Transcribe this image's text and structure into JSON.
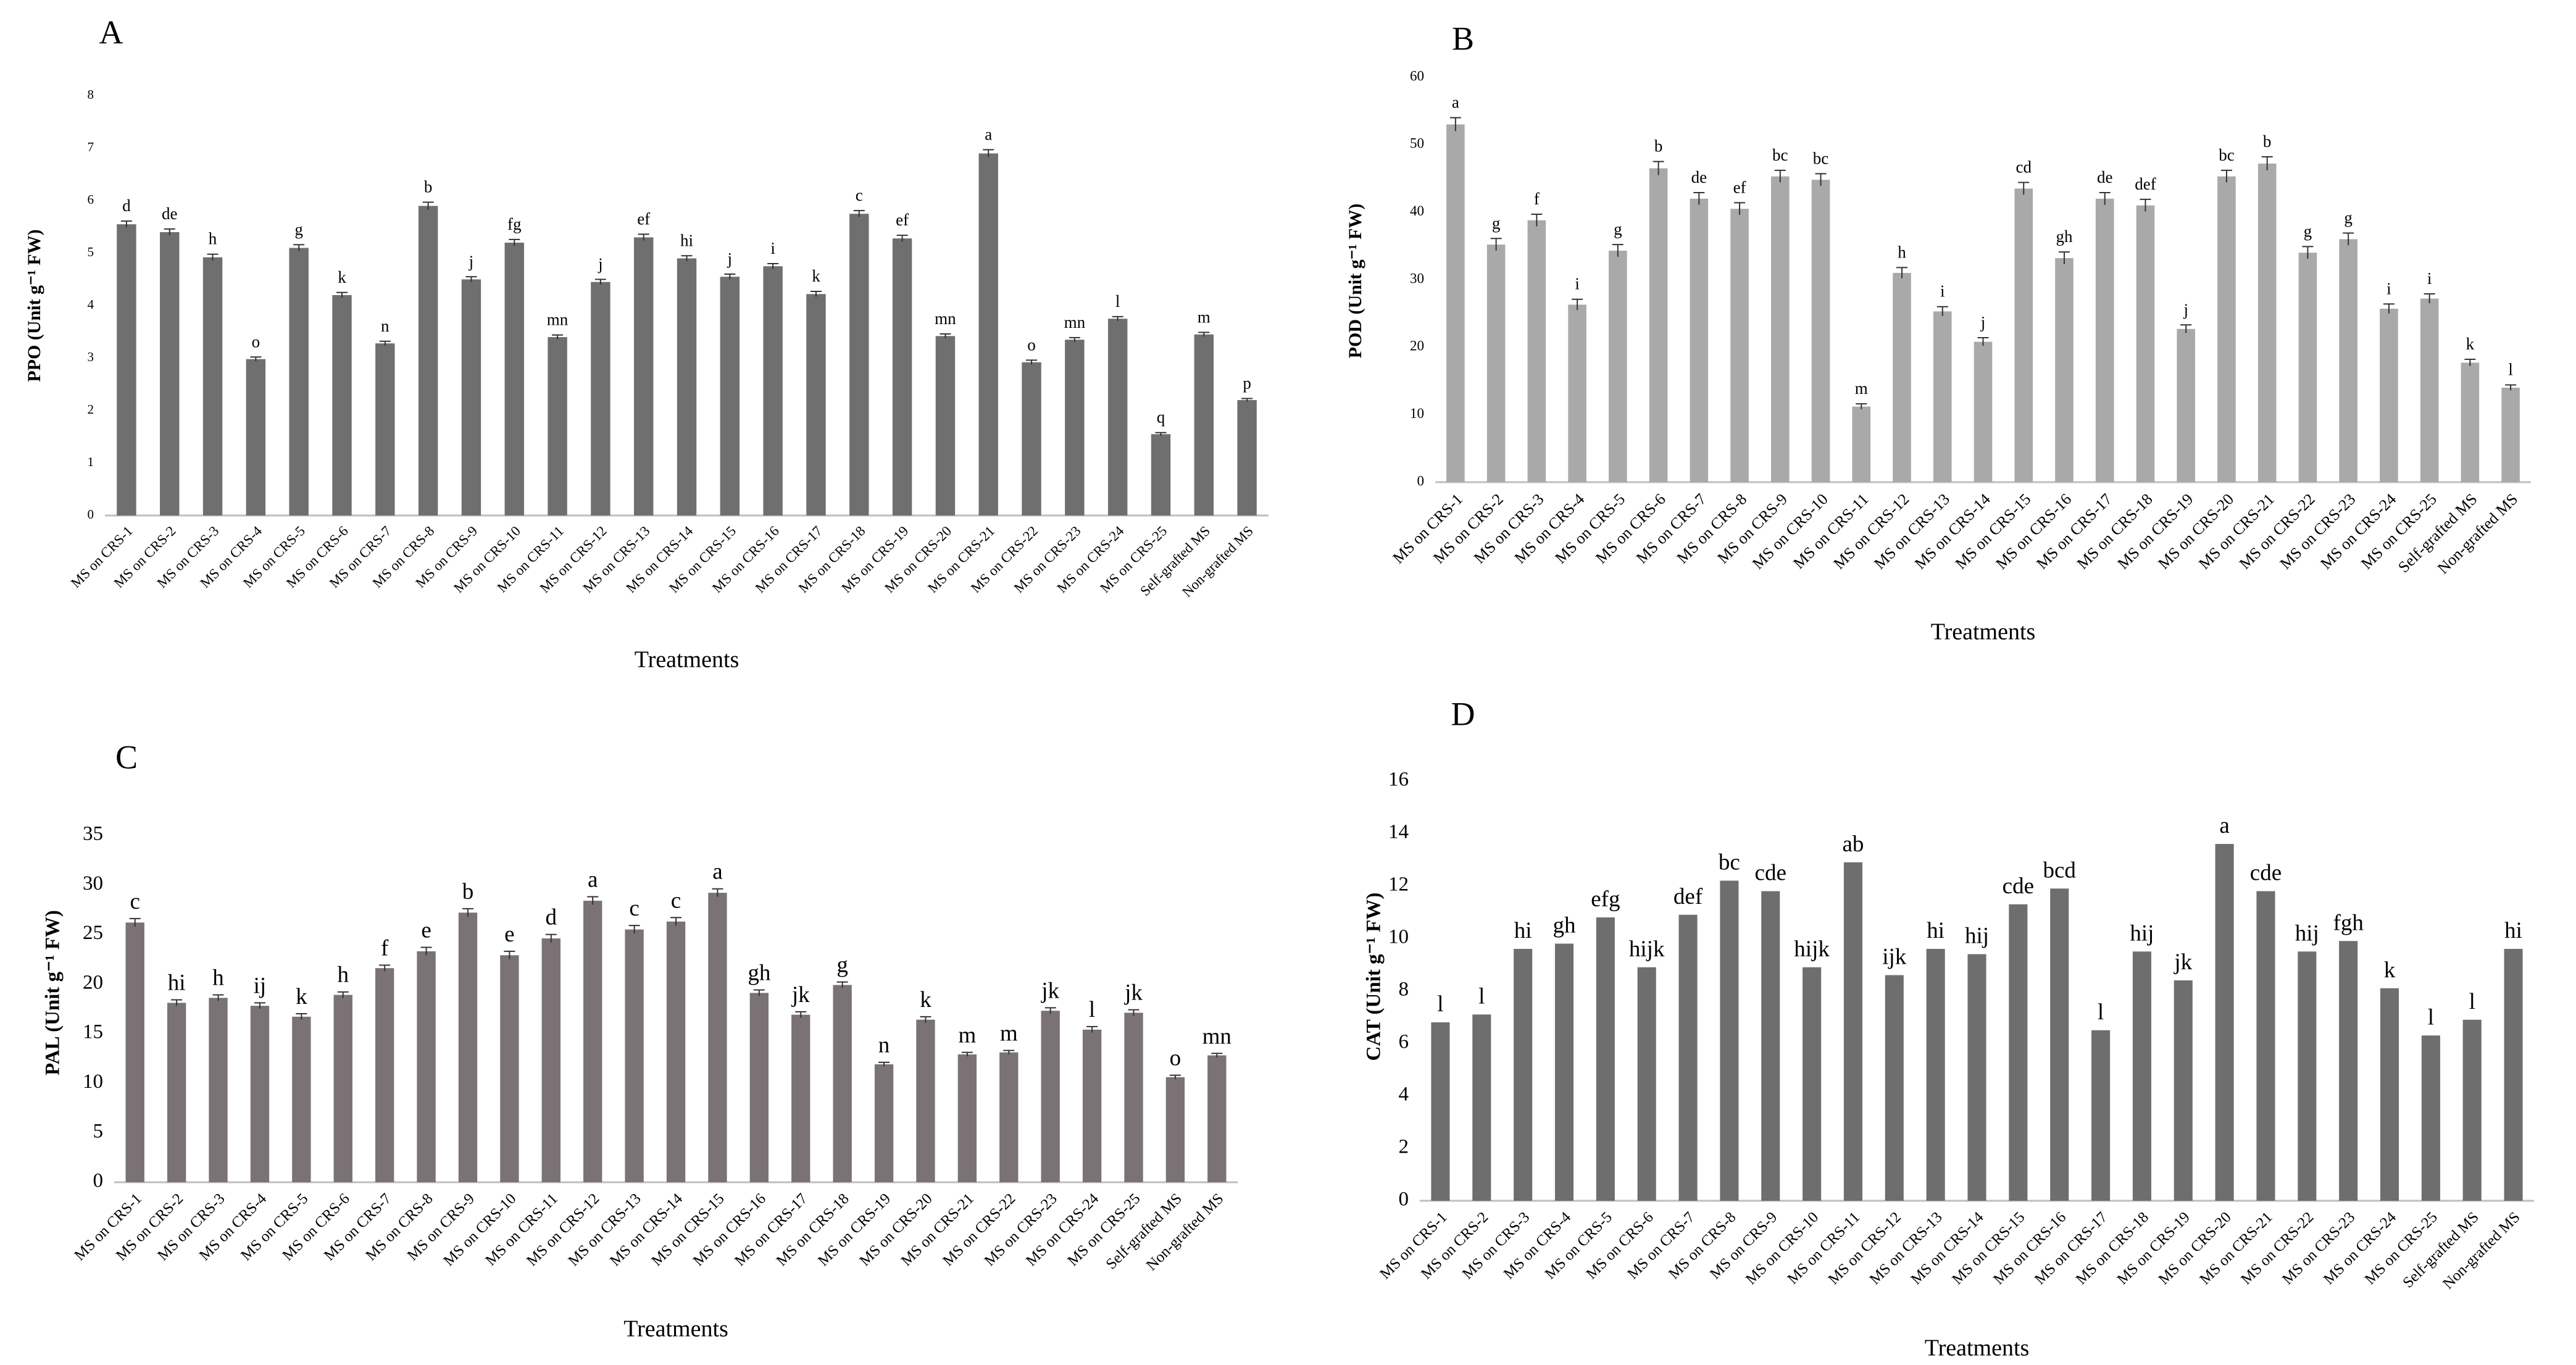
{
  "figure": {
    "colors": {
      "bar_ab": "#6f6f6f",
      "bar_b": "#a9a9a9",
      "bar_c": "#7a7274",
      "bar_d": "#6e6e6e",
      "axis": "#bfbfbf",
      "error": "#333333"
    }
  },
  "chart_data": [
    {
      "panel": "A",
      "type": "bar",
      "title": "",
      "xlabel": "Treatments",
      "ylabel": "PPO (Unit g⁻¹ FW)",
      "ylim": [
        0,
        8
      ],
      "yticks": [
        "0",
        "1",
        "2",
        "3",
        "4",
        "5",
        "6",
        "7",
        "8"
      ],
      "categories": [
        "MS on CRS-1",
        "MS on CRS-2",
        "MS on CRS-3",
        "MS on CRS-4",
        "MS on CRS-5",
        "MS on CRS-6",
        "MS on CRS-7",
        "MS on CRS-8",
        "MS on CRS-9",
        "MS on CRS-10",
        "MS on CRS-11",
        "MS on CRS-12",
        "MS on CRS-13",
        "MS on CRS-14",
        "MS on CRS-15",
        "MS on CRS-16",
        "MS on CRS-17",
        "MS on CRS-18",
        "MS on CRS-19",
        "MS on CRS-20",
        "MS on CRS-21",
        "MS on CRS-22",
        "MS on CRS-23",
        "MS on CRS-24",
        "MS on CRS-25",
        "Self-grafted MS",
        "Non-grafted MS"
      ],
      "values": [
        5.55,
        5.4,
        4.92,
        2.98,
        5.1,
        4.2,
        3.28,
        5.9,
        4.5,
        5.2,
        3.4,
        4.45,
        5.3,
        4.9,
        4.55,
        4.75,
        4.22,
        5.75,
        5.28,
        3.42,
        6.9,
        2.92,
        3.35,
        3.75,
        1.55,
        3.45,
        2.2
      ],
      "errors": [
        0.06,
        0.06,
        0.06,
        0.04,
        0.06,
        0.05,
        0.04,
        0.07,
        0.05,
        0.06,
        0.04,
        0.05,
        0.06,
        0.05,
        0.05,
        0.05,
        0.05,
        0.06,
        0.06,
        0.04,
        0.07,
        0.04,
        0.04,
        0.04,
        0.03,
        0.04,
        0.03
      ],
      "letters": [
        "d",
        "de",
        "h",
        "o",
        "g",
        "k",
        "n",
        "b",
        "j",
        "fg",
        "mn",
        "j",
        "ef",
        "hi",
        "j",
        "i",
        "k",
        "c",
        "ef",
        "mn",
        "a",
        "o",
        "mn",
        "l",
        "q",
        "m",
        "p"
      ]
    },
    {
      "panel": "B",
      "type": "bar",
      "title": "",
      "xlabel": "Treatments",
      "ylabel": "POD (Unit g⁻¹ FW)",
      "ylim": [
        0,
        60
      ],
      "yticks": [
        "0",
        "10",
        "20",
        "30",
        "40",
        "50",
        "60"
      ],
      "categories": [
        "MS on CRS-1",
        "MS on CRS-2",
        "MS on CRS-3",
        "MS on CRS-4",
        "MS on CRS-5",
        "MS on CRS-6",
        "MS on CRS-7",
        "MS on CRS-8",
        "MS on CRS-9",
        "MS on CRS-10",
        "MS on CRS-11",
        "MS on CRS-12",
        "MS on CRS-13",
        "MS on CRS-14",
        "MS on CRS-15",
        "MS on CRS-16",
        "MS on CRS-17",
        "MS on CRS-18",
        "MS on CRS-19",
        "MS on CRS-20",
        "MS on CRS-21",
        "MS on CRS-22",
        "MS on CRS-23",
        "MS on CRS-24",
        "MS on CRS-25",
        "Self-grafted MS",
        "Non-grafted MS"
      ],
      "values": [
        53,
        35.2,
        38.8,
        26.3,
        34.3,
        46.5,
        42,
        40.5,
        45.3,
        44.8,
        11.2,
        31,
        25.3,
        20.8,
        43.5,
        33.2,
        42,
        41,
        22.7,
        45.3,
        47.2,
        34,
        36,
        25.7,
        27.2,
        17.7,
        14
      ],
      "errors": [
        1.0,
        0.9,
        0.9,
        0.8,
        0.9,
        1.0,
        0.9,
        0.9,
        0.9,
        0.9,
        0.4,
        0.8,
        0.7,
        0.6,
        0.9,
        0.9,
        0.9,
        0.9,
        0.6,
        0.9,
        1.0,
        0.9,
        0.9,
        0.7,
        0.7,
        0.5,
        0.4
      ],
      "letters": [
        "a",
        "g",
        "f",
        "i",
        "g",
        "b",
        "de",
        "ef",
        "bc",
        "bc",
        "m",
        "h",
        "i",
        "j",
        "cd",
        "gh",
        "de",
        "def",
        "j",
        "bc",
        "b",
        "g",
        "g",
        "i",
        "i",
        "k",
        "l"
      ]
    },
    {
      "panel": "C",
      "type": "bar",
      "title": "",
      "xlabel": "Treatments",
      "ylabel": "PAL (Unit g⁻¹ FW)",
      "ylim": [
        0,
        35
      ],
      "yticks": [
        "0",
        "5",
        "10",
        "15",
        "20",
        "25",
        "30",
        "35"
      ],
      "categories": [
        "MS on CRS-1",
        "MS on CRS-2",
        "MS on CRS-3",
        "MS on CRS-4",
        "MS on CRS-5",
        "MS on CRS-6",
        "MS on CRS-7",
        "MS on CRS-8",
        "MS on CRS-9",
        "MS on CRS-10",
        "MS on CRS-11",
        "MS on CRS-12",
        "MS on CRS-13",
        "MS on CRS-14",
        "MS on CRS-15",
        "MS on CRS-16",
        "MS on CRS-17",
        "MS on CRS-18",
        "MS on CRS-19",
        "MS on CRS-20",
        "MS on CRS-21",
        "MS on CRS-22",
        "MS on CRS-23",
        "MS on CRS-24",
        "MS on CRS-25",
        "Self-grafted MS",
        "Non-grafted MS"
      ],
      "values": [
        26.2,
        18.1,
        18.6,
        17.8,
        16.7,
        18.9,
        21.6,
        23.3,
        27.2,
        22.9,
        24.6,
        28.4,
        25.5,
        26.3,
        29.2,
        19.1,
        16.9,
        19.9,
        11.9,
        16.4,
        12.9,
        13.1,
        17.3,
        15.4,
        17.1,
        10.6,
        12.8
      ],
      "errors": [
        0.4,
        0.3,
        0.3,
        0.3,
        0.3,
        0.3,
        0.3,
        0.4,
        0.4,
        0.4,
        0.4,
        0.4,
        0.4,
        0.4,
        0.4,
        0.3,
        0.3,
        0.3,
        0.2,
        0.3,
        0.2,
        0.2,
        0.3,
        0.3,
        0.3,
        0.2,
        0.2
      ],
      "letters": [
        "c",
        "hi",
        "h",
        "ij",
        "k",
        "h",
        "f",
        "e",
        "b",
        "e",
        "d",
        "a",
        "c",
        "c",
        "a",
        "gh",
        "jk",
        "g",
        "n",
        "k",
        "m",
        "m",
        "jk",
        "l",
        "jk",
        "o",
        "mn"
      ]
    },
    {
      "panel": "D",
      "type": "bar",
      "title": "",
      "xlabel": "Treatments",
      "ylabel": "CAT (Unit g⁻¹ FW)",
      "ylim": [
        0,
        16
      ],
      "yticks": [
        "0",
        "2",
        "4",
        "6",
        "8",
        "10",
        "12",
        "14",
        "16"
      ],
      "categories": [
        "MS on CRS-1",
        "MS on CRS-2",
        "MS on CRS-3",
        "MS on CRS-4",
        "MS on CRS-5",
        "MS on CRS-6",
        "MS on CRS-7",
        "MS on CRS-8",
        "MS on CRS-9",
        "MS on CRS-10",
        "MS on CRS-11",
        "MS on CRS-12",
        "MS on CRS-13",
        "MS on CRS-14",
        "MS on CRS-15",
        "MS on CRS-16",
        "MS on CRS-17",
        "MS on CRS-18",
        "MS on CRS-19",
        "MS on CRS-20",
        "MS on CRS-21",
        "MS on CRS-22",
        "MS on CRS-23",
        "MS on CRS-24",
        "MS on CRS-25",
        "Self-grafted MS",
        "Non-grafted MS"
      ],
      "values": [
        6.8,
        7.1,
        9.6,
        9.8,
        10.8,
        8.9,
        10.9,
        12.2,
        11.8,
        8.9,
        12.9,
        8.6,
        9.6,
        9.4,
        11.3,
        11.9,
        6.5,
        9.5,
        8.4,
        13.6,
        11.8,
        9.5,
        9.9,
        8.1,
        6.3,
        6.9,
        9.6
      ],
      "errors": [
        0,
        0,
        0,
        0,
        0,
        0,
        0,
        0,
        0,
        0,
        0,
        0,
        0,
        0,
        0,
        0,
        0,
        0,
        0,
        0,
        0,
        0,
        0,
        0,
        0,
        0,
        0
      ],
      "letters": [
        "l",
        "l",
        "hi",
        "gh",
        "efg",
        "hijk",
        "def",
        "bc",
        "cde",
        "hijk",
        "ab",
        "ijk",
        "hi",
        "hij",
        "cde",
        "bcd",
        "l",
        "hij",
        "jk",
        "a",
        "cde",
        "hij",
        "fgh",
        "k",
        "l",
        "l",
        "hi"
      ]
    }
  ]
}
